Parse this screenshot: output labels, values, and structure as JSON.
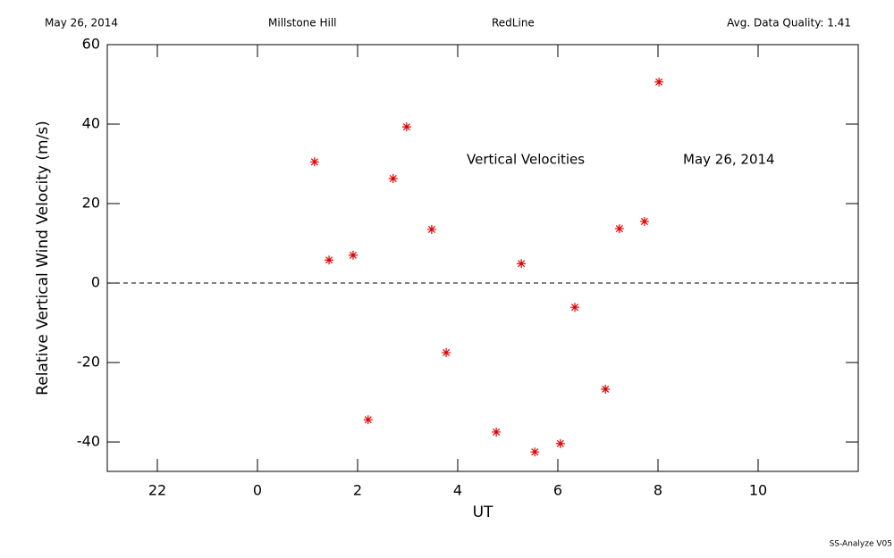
{
  "chart_data": {
    "type": "scatter",
    "header": [
      "May 26, 2014",
      "Millstone Hill",
      "RedLine",
      "Avg. Data Quality: 1.41"
    ],
    "annotations": [
      "Vertical Velocities",
      "May 26, 2014"
    ],
    "footer": "SS-Analyze V05",
    "x_label": "UT",
    "y_label": "Relative Vertical Wind Velocity (m/s)",
    "xlim": [
      -3,
      12
    ],
    "ylim": [
      -47.4,
      60
    ],
    "xticks": [
      {
        "value": -2,
        "label": "22"
      },
      0,
      2,
      4,
      6,
      8,
      10
    ],
    "yticks": [
      -40,
      -20,
      0,
      20,
      40,
      60
    ],
    "color": "#e00000",
    "x": [
      1.14,
      1.43,
      1.91,
      2.21,
      2.71,
      2.98,
      3.48,
      3.77,
      4.77,
      5.27,
      5.54,
      6.05,
      6.34,
      6.95,
      7.23,
      7.73,
      8.02
    ],
    "values": [
      30.5,
      5.8,
      7.0,
      -34.4,
      26.3,
      39.3,
      13.5,
      -17.5,
      -37.5,
      4.9,
      -42.5,
      -40.4,
      -6.1,
      -26.7,
      13.7,
      15.5,
      50.6
    ]
  }
}
